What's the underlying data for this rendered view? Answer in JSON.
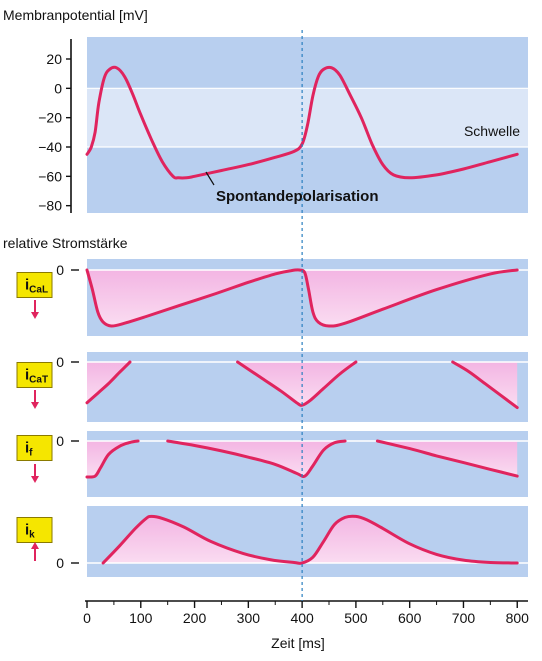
{
  "chart_data": [
    {
      "type": "line",
      "panel": "membrane-potential",
      "ylabel": "Membranpotential [mV]",
      "yticks": [
        20,
        0,
        -20,
        -40,
        -60,
        -80
      ],
      "ylim": [
        -85,
        35
      ],
      "threshold_band": [
        -40,
        0
      ],
      "threshold_label": "Schwelle",
      "annotation": "Spontandepolarisation",
      "series": [
        {
          "x": [
            0,
            8,
            15,
            22,
            32,
            42,
            55,
            70,
            85,
            100,
            120,
            140,
            160,
            170,
            185,
            200,
            250,
            300,
            350,
            385,
            400,
            410,
            420,
            430,
            440,
            455,
            470,
            490,
            510,
            530,
            550,
            570,
            600,
            650,
            700,
            750,
            800
          ],
          "y": [
            -45,
            -40,
            -30,
            -10,
            7,
            13,
            14,
            8,
            -4,
            -18,
            -35,
            -50,
            -60,
            -61,
            -61,
            -60,
            -56,
            -52,
            -47,
            -43,
            -38,
            -25,
            -5,
            8,
            13,
            14,
            9,
            -5,
            -20,
            -38,
            -52,
            -59,
            -61,
            -59,
            -55,
            -50,
            -45
          ]
        }
      ]
    },
    {
      "type": "area",
      "panel": "iCaL",
      "channel_label": "iCaL",
      "channel_main": "i",
      "channel_sub": "CaL",
      "direction": "down",
      "zero_label": "0",
      "series": [
        {
          "x": [
            0,
            10,
            20,
            30,
            45,
            70,
            110,
            170,
            240,
            300,
            350,
            380,
            395,
            405,
            412,
            420,
            430,
            450,
            480,
            550,
            650,
            750,
            800
          ],
          "y": [
            0,
            -0.35,
            -0.75,
            -0.93,
            -1.0,
            -0.95,
            -0.83,
            -0.64,
            -0.42,
            -0.22,
            -0.07,
            -0.01,
            0,
            -0.05,
            -0.35,
            -0.75,
            -0.93,
            -1.0,
            -0.95,
            -0.7,
            -0.35,
            -0.07,
            0
          ]
        }
      ]
    },
    {
      "type": "area",
      "panel": "iCaT",
      "channel_label": "iCaT",
      "channel_main": "i",
      "channel_sub": "CaT",
      "direction": "down",
      "zero_label": "0",
      "fill_segments": [
        [
          0,
          80
        ],
        [
          280,
          500
        ],
        [
          680,
          800
        ]
      ],
      "series": [
        {
          "x": [
            0,
            20,
            40,
            60,
            80
          ],
          "y": [
            -0.85,
            -0.65,
            -0.45,
            -0.22,
            0
          ]
        },
        {
          "x": [
            280,
            320,
            360,
            390,
            400,
            415,
            440,
            470,
            500
          ],
          "y": [
            0,
            -0.3,
            -0.6,
            -0.85,
            -0.9,
            -0.8,
            -0.55,
            -0.25,
            0
          ]
        },
        {
          "x": [
            680,
            710,
            740,
            770,
            800
          ],
          "y": [
            0,
            -0.2,
            -0.45,
            -0.7,
            -0.95
          ]
        }
      ]
    },
    {
      "type": "area",
      "panel": "if",
      "channel_label": "if",
      "channel_main": "i",
      "channel_sub": "f",
      "direction": "down",
      "zero_label": "0",
      "fill_segments": [
        [
          0,
          95
        ],
        [
          150,
          480
        ],
        [
          540,
          800
        ]
      ],
      "series": [
        {
          "x": [
            0,
            15,
            25,
            40,
            60,
            80,
            95
          ],
          "y": [
            -0.8,
            -0.78,
            -0.6,
            -0.3,
            -0.12,
            -0.03,
            0
          ]
        },
        {
          "x": [
            150,
            200,
            250,
            300,
            350,
            390,
            405,
            420,
            440,
            460,
            480
          ],
          "y": [
            0,
            -0.1,
            -0.22,
            -0.36,
            -0.52,
            -0.72,
            -0.78,
            -0.55,
            -0.2,
            -0.04,
            0
          ]
        },
        {
          "x": [
            540,
            600,
            650,
            700,
            750,
            800
          ],
          "y": [
            0,
            -0.17,
            -0.33,
            -0.48,
            -0.63,
            -0.78
          ]
        }
      ]
    },
    {
      "type": "area",
      "panel": "ik",
      "channel_label": "ik",
      "channel_main": "i",
      "channel_sub": "k",
      "direction": "up",
      "zero_label": "0",
      "series": [
        {
          "x": [
            30,
            60,
            90,
            110,
            120,
            140,
            180,
            230,
            290,
            340,
            385,
            400,
            420,
            440,
            460,
            480,
            500,
            520,
            550,
            600,
            650,
            700,
            750,
            800
          ],
          "y": [
            0,
            0.35,
            0.72,
            0.93,
            0.97,
            0.93,
            0.75,
            0.45,
            0.2,
            0.07,
            0.01,
            0,
            0.12,
            0.45,
            0.8,
            0.95,
            0.97,
            0.9,
            0.72,
            0.4,
            0.18,
            0.06,
            0.01,
            0
          ]
        }
      ]
    }
  ],
  "x_axis": {
    "label": "Zeit [ms]",
    "ticks": [
      0,
      100,
      200,
      300,
      400,
      500,
      600,
      700,
      800
    ],
    "range": [
      0,
      820
    ]
  },
  "current_section_label": "relative Stromstärke",
  "marker_time": 400,
  "colors": {
    "panel_bg": "#b8cfef",
    "band_bg": "#dbe6f7",
    "curve": "#e0245e",
    "fill_top": "#f3b5e3",
    "fill_bottom": "#fadcf1",
    "label_box": "#f5e600",
    "arrow": "#e0245e",
    "marker": "#2a7fc0"
  }
}
